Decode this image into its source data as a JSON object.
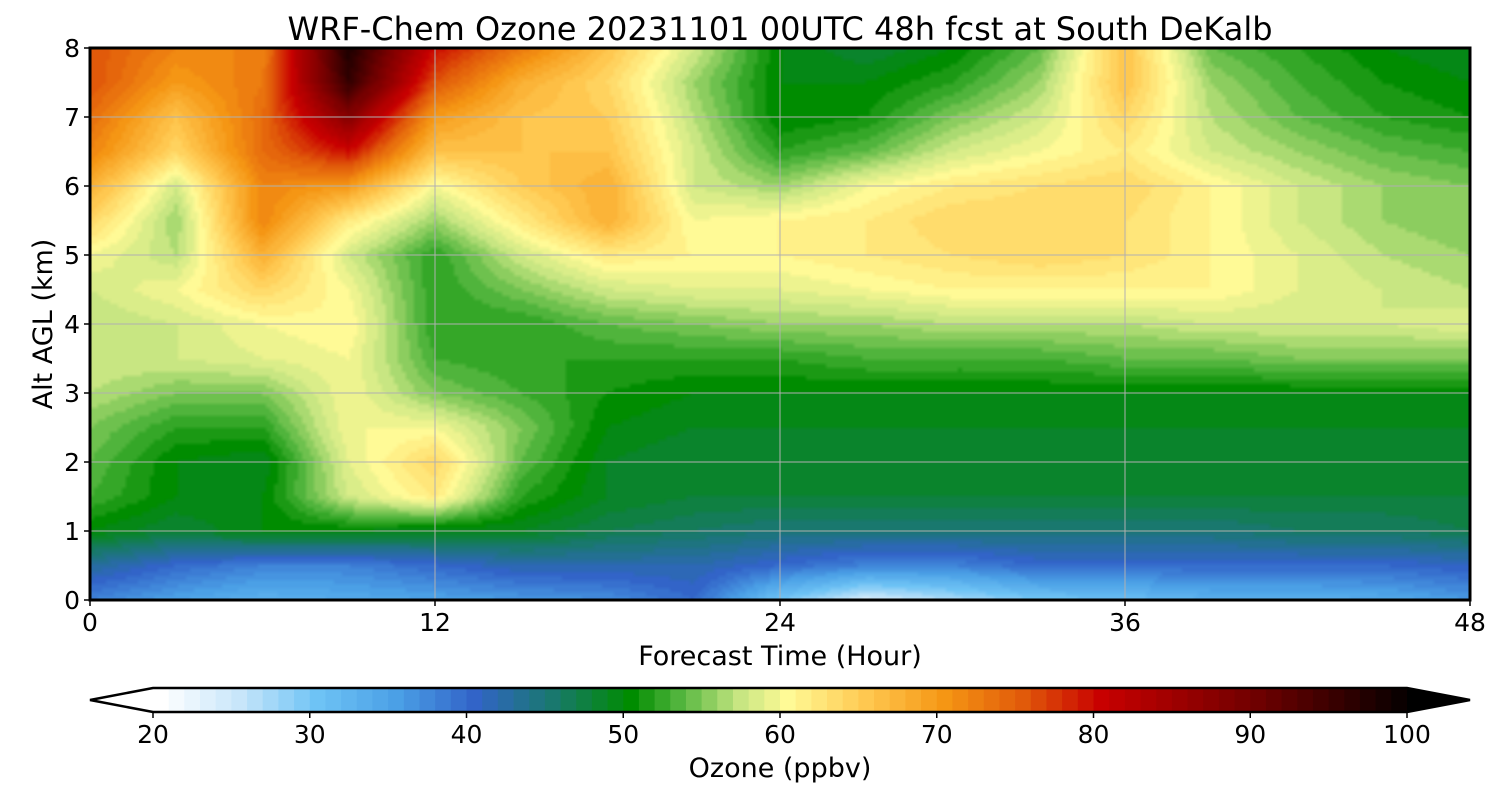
{
  "chart_data": {
    "type": "heatmap",
    "title": "WRF-Chem Ozone  20231101 00UTC 48h fcst at South DeKalb",
    "xlabel": "Forecast Time (Hour)",
    "ylabel": "Alt AGL (km)",
    "xlim": [
      0,
      48
    ],
    "ylim": [
      0,
      8
    ],
    "xticks": [
      "0",
      "12",
      "24",
      "36",
      "48"
    ],
    "yticks": [
      "0",
      "1",
      "2",
      "3",
      "4",
      "5",
      "6",
      "7",
      "8"
    ],
    "grid": true,
    "colorbar": {
      "label": "Ozone  (ppbv)",
      "range": [
        20,
        100
      ],
      "ticks": [
        "20",
        "30",
        "40",
        "50",
        "60",
        "70",
        "80",
        "90",
        "100"
      ],
      "extend": "both"
    },
    "x": [
      0,
      3,
      6,
      9,
      12,
      15,
      18,
      21,
      24,
      27,
      30,
      33,
      36,
      39,
      42,
      45,
      48
    ],
    "y": [
      0,
      0.5,
      1,
      1.5,
      2,
      2.5,
      3,
      3.5,
      4,
      4.5,
      5,
      5.5,
      6,
      6.5,
      7,
      7.5,
      8
    ],
    "z": [
      [
        38,
        35,
        33,
        34,
        35,
        36,
        37,
        40,
        30,
        24,
        27,
        30,
        31,
        33,
        33,
        34,
        36
      ],
      [
        43,
        40,
        38,
        38,
        40,
        42,
        42,
        42,
        40,
        38,
        38,
        40,
        40,
        40,
        40,
        40,
        41
      ],
      [
        50,
        48,
        50,
        50,
        49,
        49,
        47,
        46,
        45,
        45,
        45,
        45,
        45,
        45,
        46,
        46,
        47
      ],
      [
        53,
        50,
        50,
        58,
        62,
        52,
        49,
        48,
        48,
        48,
        48,
        48,
        48,
        48,
        48,
        48,
        48
      ],
      [
        54,
        50,
        49,
        59,
        64,
        54,
        49,
        48,
        48,
        48,
        48,
        48,
        48,
        48,
        48,
        48,
        48
      ],
      [
        55,
        52,
        52,
        60,
        60,
        55,
        50,
        49,
        49,
        49,
        49,
        49,
        49,
        49,
        49,
        49,
        49
      ],
      [
        57,
        55,
        55,
        60,
        55,
        53,
        51,
        50,
        50,
        50,
        50,
        50,
        50,
        50,
        50,
        50,
        50
      ],
      [
        58,
        58,
        59,
        60,
        53,
        52,
        52,
        52,
        52,
        53,
        53,
        53,
        54,
        54,
        55,
        55,
        55
      ],
      [
        57,
        58,
        60,
        61,
        52,
        52,
        54,
        55,
        56,
        56,
        57,
        57,
        57,
        58,
        58,
        58,
        59
      ],
      [
        58,
        60,
        64,
        60,
        52,
        55,
        58,
        59,
        59,
        60,
        61,
        61,
        61,
        61,
        59,
        58,
        57
      ],
      [
        60,
        57,
        68,
        58,
        52,
        58,
        62,
        61,
        61,
        62,
        63,
        64,
        63,
        61,
        59,
        57,
        56
      ],
      [
        64,
        56,
        72,
        62,
        56,
        62,
        68,
        60,
        61,
        62,
        64,
        64,
        63,
        61,
        58,
        56,
        55
      ],
      [
        68,
        58,
        72,
        70,
        60,
        65,
        68,
        58,
        56,
        60,
        62,
        63,
        64,
        61,
        58,
        56,
        55
      ],
      [
        72,
        64,
        74,
        80,
        66,
        66,
        66,
        58,
        52,
        54,
        58,
        60,
        62,
        58,
        56,
        54,
        53
      ],
      [
        74,
        66,
        74,
        88,
        70,
        66,
        65,
        57,
        50,
        51,
        55,
        58,
        64,
        57,
        54,
        52,
        51
      ],
      [
        76,
        70,
        73,
        96,
        76,
        68,
        64,
        56,
        50,
        50,
        52,
        56,
        66,
        56,
        53,
        51,
        50
      ],
      [
        76,
        72,
        72,
        98,
        80,
        73,
        66,
        58,
        50,
        48,
        50,
        54,
        66,
        54,
        52,
        50,
        49
      ]
    ]
  }
}
